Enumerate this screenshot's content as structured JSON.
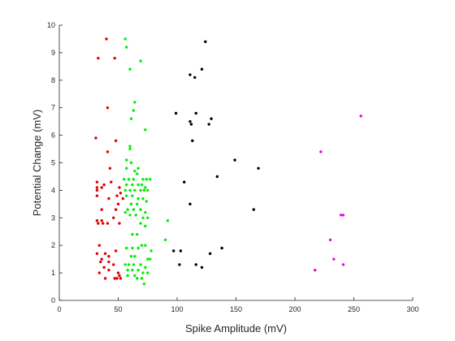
{
  "chart_data": {
    "type": "scatter",
    "title": "",
    "xlabel": "Spike Amplitude (mV)",
    "ylabel": "Potential Change (mV)",
    "xlim": [
      0,
      300
    ],
    "ylim": [
      0,
      10
    ],
    "xticks": [
      0,
      50,
      100,
      150,
      200,
      250,
      300
    ],
    "yticks": [
      0,
      1,
      2,
      3,
      4,
      5,
      6,
      7,
      8,
      9,
      10
    ],
    "grid": false,
    "legend": "none",
    "series": [
      {
        "color": "#e00000",
        "points": [
          [
            40,
            9.5
          ],
          [
            33,
            8.8
          ],
          [
            47,
            8.8
          ],
          [
            41,
            7.0
          ],
          [
            31,
            5.9
          ],
          [
            48,
            5.8
          ],
          [
            41,
            5.4
          ],
          [
            43,
            4.8
          ],
          [
            32,
            4.3
          ],
          [
            38,
            4.2
          ],
          [
            44,
            4.3
          ],
          [
            32,
            4.1
          ],
          [
            36,
            4.1
          ],
          [
            51,
            4.1
          ],
          [
            32,
            4.0
          ],
          [
            52,
            3.9
          ],
          [
            32,
            3.8
          ],
          [
            49,
            3.8
          ],
          [
            42,
            3.7
          ],
          [
            54,
            3.7
          ],
          [
            50,
            3.5
          ],
          [
            36,
            3.3
          ],
          [
            48,
            3.3
          ],
          [
            46,
            3.0
          ],
          [
            32,
            2.9
          ],
          [
            36,
            2.9
          ],
          [
            33,
            2.8
          ],
          [
            37,
            2.8
          ],
          [
            41,
            2.8
          ],
          [
            51,
            2.8
          ],
          [
            34,
            2.0
          ],
          [
            48,
            1.8
          ],
          [
            32,
            1.7
          ],
          [
            39,
            1.7
          ],
          [
            42,
            1.6
          ],
          [
            36,
            1.5
          ],
          [
            35,
            1.4
          ],
          [
            42,
            1.4
          ],
          [
            46,
            1.3
          ],
          [
            38,
            1.2
          ],
          [
            42,
            1.1
          ],
          [
            34,
            1.0
          ],
          [
            50,
            1.0
          ],
          [
            39,
            0.8
          ],
          [
            47,
            0.8
          ],
          [
            49,
            0.8
          ],
          [
            52,
            0.8
          ],
          [
            51,
            0.9
          ]
        ]
      },
      {
        "color": "#00ee00",
        "points": [
          [
            56,
            9.5
          ],
          [
            57,
            9.2
          ],
          [
            69,
            8.7
          ],
          [
            60,
            8.4
          ],
          [
            64,
            7.2
          ],
          [
            63,
            6.9
          ],
          [
            61,
            6.6
          ],
          [
            73,
            6.2
          ],
          [
            60,
            5.6
          ],
          [
            60,
            5.5
          ],
          [
            57,
            5.1
          ],
          [
            61,
            5.0
          ],
          [
            57,
            4.8
          ],
          [
            64,
            4.7
          ],
          [
            67,
            4.8
          ],
          [
            66,
            4.6
          ],
          [
            55,
            4.4
          ],
          [
            59,
            4.4
          ],
          [
            63,
            4.4
          ],
          [
            71,
            4.4
          ],
          [
            74,
            4.4
          ],
          [
            77,
            4.4
          ],
          [
            57,
            4.2
          ],
          [
            62,
            4.2
          ],
          [
            67,
            4.2
          ],
          [
            70,
            4.2
          ],
          [
            73,
            4.1
          ],
          [
            56,
            4.0
          ],
          [
            60,
            4.0
          ],
          [
            64,
            4.0
          ],
          [
            69,
            4.0
          ],
          [
            72,
            4.0
          ],
          [
            75,
            4.0
          ],
          [
            57,
            3.8
          ],
          [
            62,
            3.8
          ],
          [
            67,
            3.7
          ],
          [
            71,
            3.7
          ],
          [
            74,
            3.6
          ],
          [
            61,
            3.5
          ],
          [
            66,
            3.5
          ],
          [
            58,
            3.3
          ],
          [
            63,
            3.3
          ],
          [
            69,
            3.3
          ],
          [
            73,
            3.2
          ],
          [
            56,
            3.2
          ],
          [
            60,
            3.1
          ],
          [
            65,
            3.1
          ],
          [
            71,
            3.0
          ],
          [
            75,
            3.0
          ],
          [
            92,
            2.9
          ],
          [
            69,
            2.8
          ],
          [
            73,
            2.7
          ],
          [
            62,
            2.4
          ],
          [
            66,
            2.4
          ],
          [
            90,
            2.2
          ],
          [
            70,
            2.0
          ],
          [
            73,
            2.0
          ],
          [
            57,
            1.9
          ],
          [
            62,
            1.9
          ],
          [
            67,
            1.9
          ],
          [
            78,
            1.8
          ],
          [
            61,
            1.6
          ],
          [
            64,
            1.6
          ],
          [
            75,
            1.5
          ],
          [
            77,
            1.5
          ],
          [
            56,
            1.3
          ],
          [
            59,
            1.3
          ],
          [
            63,
            1.3
          ],
          [
            69,
            1.3
          ],
          [
            73,
            1.2
          ],
          [
            58,
            1.1
          ],
          [
            62,
            1.1
          ],
          [
            67,
            1.1
          ],
          [
            71,
            1.0
          ],
          [
            75,
            1.0
          ],
          [
            58,
            0.9
          ],
          [
            64,
            0.9
          ],
          [
            70,
            0.8
          ],
          [
            66,
            0.8
          ],
          [
            72,
            0.6
          ]
        ]
      },
      {
        "color": "#000000",
        "points": [
          [
            124,
            9.4
          ],
          [
            121,
            8.4
          ],
          [
            111,
            8.2
          ],
          [
            115,
            8.1
          ],
          [
            99,
            6.8
          ],
          [
            116,
            6.8
          ],
          [
            129,
            6.6
          ],
          [
            111,
            6.5
          ],
          [
            127,
            6.4
          ],
          [
            112,
            6.4
          ],
          [
            113,
            5.8
          ],
          [
            149,
            5.1
          ],
          [
            169,
            4.8
          ],
          [
            134,
            4.5
          ],
          [
            106,
            4.3
          ],
          [
            111,
            3.5
          ],
          [
            165,
            3.3
          ],
          [
            138,
            1.9
          ],
          [
            97,
            1.8
          ],
          [
            103,
            1.8
          ],
          [
            128,
            1.7
          ],
          [
            102,
            1.3
          ],
          [
            116,
            1.3
          ],
          [
            121,
            1.2
          ]
        ]
      },
      {
        "color": "#ee00ee",
        "points": [
          [
            256,
            6.7
          ],
          [
            222,
            5.4
          ],
          [
            239,
            3.1
          ],
          [
            241,
            3.1
          ],
          [
            230,
            2.2
          ],
          [
            233,
            1.5
          ],
          [
            241,
            1.3
          ],
          [
            217,
            1.1
          ]
        ]
      }
    ]
  }
}
